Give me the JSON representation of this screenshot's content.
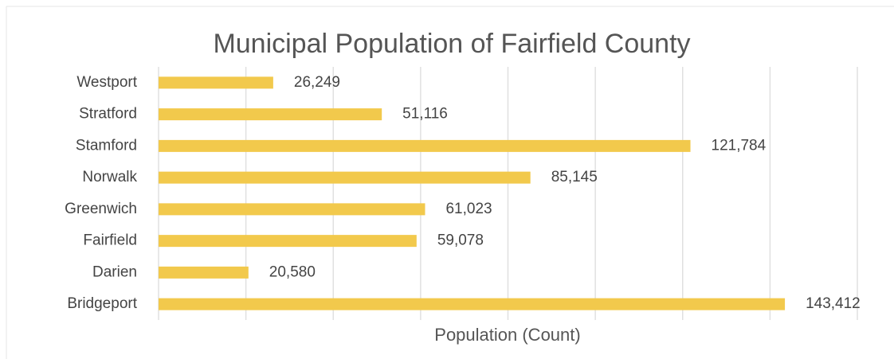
{
  "chart_data": {
    "type": "bar",
    "orientation": "horizontal",
    "title": "Municipal Population of Fairfield County",
    "x_label": "Population (Count)",
    "categories": [
      "Westport",
      "Stratford",
      "Stamford",
      "Norwalk",
      "Greenwich",
      "Fairfield",
      "Darien",
      "Bridgeport"
    ],
    "values": [
      26249,
      51116,
      121784,
      85145,
      61023,
      59078,
      20580,
      143412
    ],
    "value_labels": [
      "26,249",
      "51,116",
      "121,784",
      "85,145",
      "61,023",
      "59,078",
      "20,580",
      "143,412"
    ],
    "color": "#f2c94c",
    "xlim": [
      0,
      160000
    ],
    "xticks": [
      0,
      20000,
      40000,
      60000,
      80000,
      100000,
      120000,
      140000,
      160000
    ],
    "grid": true
  }
}
